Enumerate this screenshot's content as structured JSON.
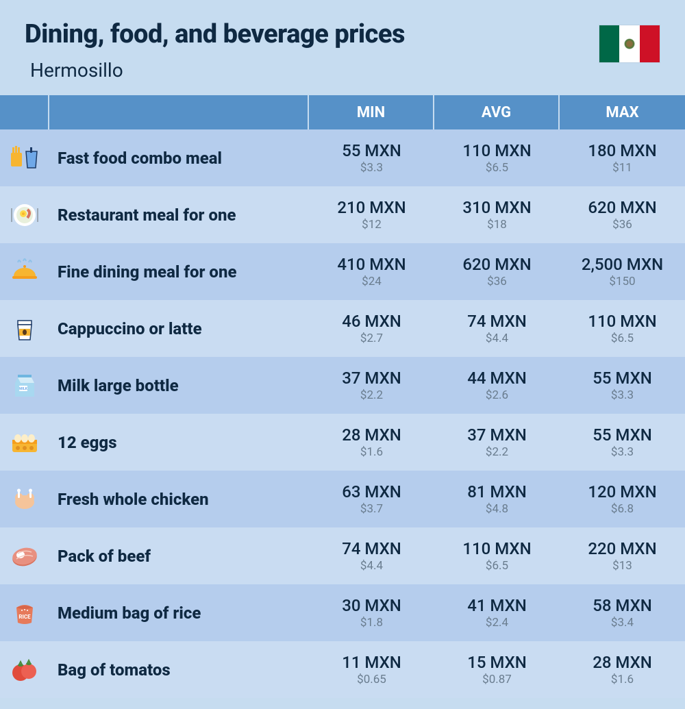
{
  "title": "Dining, food, and beverage prices",
  "subtitle": "Hermosillo",
  "flag": {
    "left": "#006847",
    "mid": "#ffffff",
    "right": "#ce1126"
  },
  "columns": [
    "MIN",
    "AVG",
    "MAX"
  ],
  "colors": {
    "page_bg": "#c6dcf0",
    "header_bg": "#5691c8",
    "row_even": "#b5cded",
    "row_odd": "#c9dcf2",
    "text_main": "#0f2942",
    "text_sub": "#6a7d8f"
  },
  "rows": [
    {
      "icon": "fastfood",
      "name": "Fast food combo meal",
      "min": {
        "mxn": "55 MXN",
        "usd": "$3.3"
      },
      "avg": {
        "mxn": "110 MXN",
        "usd": "$6.5"
      },
      "max": {
        "mxn": "180 MXN",
        "usd": "$11"
      }
    },
    {
      "icon": "plate",
      "name": "Restaurant meal for one",
      "min": {
        "mxn": "210 MXN",
        "usd": "$12"
      },
      "avg": {
        "mxn": "310 MXN",
        "usd": "$18"
      },
      "max": {
        "mxn": "620 MXN",
        "usd": "$36"
      }
    },
    {
      "icon": "cloche",
      "name": "Fine dining meal for one",
      "min": {
        "mxn": "410 MXN",
        "usd": "$24"
      },
      "avg": {
        "mxn": "620 MXN",
        "usd": "$36"
      },
      "max": {
        "mxn": "2,500 MXN",
        "usd": "$150"
      }
    },
    {
      "icon": "coffee",
      "name": "Cappuccino or latte",
      "min": {
        "mxn": "46 MXN",
        "usd": "$2.7"
      },
      "avg": {
        "mxn": "74 MXN",
        "usd": "$4.4"
      },
      "max": {
        "mxn": "110 MXN",
        "usd": "$6.5"
      }
    },
    {
      "icon": "milk",
      "name": "Milk large bottle",
      "min": {
        "mxn": "37 MXN",
        "usd": "$2.2"
      },
      "avg": {
        "mxn": "44 MXN",
        "usd": "$2.6"
      },
      "max": {
        "mxn": "55 MXN",
        "usd": "$3.3"
      }
    },
    {
      "icon": "eggs",
      "name": "12 eggs",
      "min": {
        "mxn": "28 MXN",
        "usd": "$1.6"
      },
      "avg": {
        "mxn": "37 MXN",
        "usd": "$2.2"
      },
      "max": {
        "mxn": "55 MXN",
        "usd": "$3.3"
      }
    },
    {
      "icon": "chicken",
      "name": "Fresh whole chicken",
      "min": {
        "mxn": "63 MXN",
        "usd": "$3.7"
      },
      "avg": {
        "mxn": "81 MXN",
        "usd": "$4.8"
      },
      "max": {
        "mxn": "120 MXN",
        "usd": "$6.8"
      }
    },
    {
      "icon": "beef",
      "name": "Pack of beef",
      "min": {
        "mxn": "74 MXN",
        "usd": "$4.4"
      },
      "avg": {
        "mxn": "110 MXN",
        "usd": "$6.5"
      },
      "max": {
        "mxn": "220 MXN",
        "usd": "$13"
      }
    },
    {
      "icon": "rice",
      "name": "Medium bag of rice",
      "min": {
        "mxn": "30 MXN",
        "usd": "$1.8"
      },
      "avg": {
        "mxn": "41 MXN",
        "usd": "$2.4"
      },
      "max": {
        "mxn": "58 MXN",
        "usd": "$3.4"
      }
    },
    {
      "icon": "tomato",
      "name": "Bag of tomatos",
      "min": {
        "mxn": "11 MXN",
        "usd": "$0.65"
      },
      "avg": {
        "mxn": "15 MXN",
        "usd": "$0.87"
      },
      "max": {
        "mxn": "28 MXN",
        "usd": "$1.6"
      }
    }
  ]
}
